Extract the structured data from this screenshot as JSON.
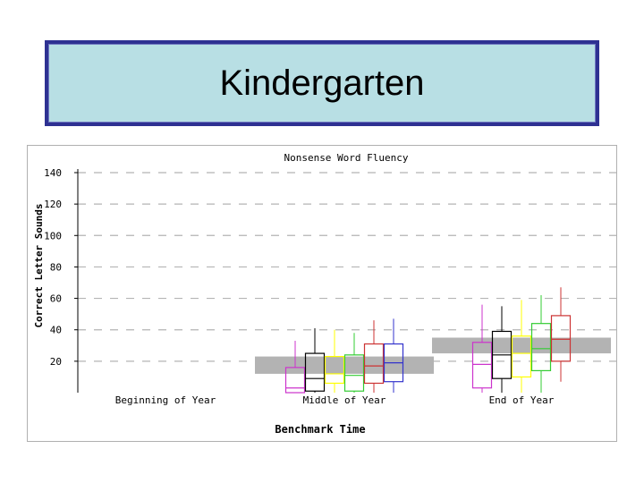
{
  "slide": {
    "title": "Kindergarten"
  },
  "chart_data": {
    "type": "box",
    "title": "Nonsense Word Fluency",
    "xlabel": "Benchmark Time",
    "ylabel": "Correct Letter Sounds",
    "ylim": [
      0,
      140
    ],
    "yticks": [
      20,
      40,
      60,
      80,
      100,
      120,
      140
    ],
    "grid": true,
    "categories": [
      "Beginning of Year",
      "Middle of Year",
      "End of Year"
    ],
    "benchmark_bands": [
      {
        "category": "Middle of Year",
        "low": 12,
        "high": 23
      },
      {
        "category": "End of Year",
        "low": 25,
        "high": 35
      }
    ],
    "series_colors": [
      "#cc33cc",
      "#000000",
      "#ffff00",
      "#33cc33",
      "#cc3333",
      "#3333cc"
    ],
    "boxes": [
      {
        "category": "Middle of Year",
        "color": "#cc33cc",
        "min": 0,
        "q1": 0,
        "median": 3,
        "q3": 16,
        "max": 33
      },
      {
        "category": "Middle of Year",
        "color": "#000000",
        "min": 0,
        "q1": 1,
        "median": 9,
        "q3": 25,
        "max": 41
      },
      {
        "category": "Middle of Year",
        "color": "#ffff00",
        "min": 0,
        "q1": 6,
        "median": 12,
        "q3": 23,
        "max": 40
      },
      {
        "category": "Middle of Year",
        "color": "#33cc33",
        "min": 0,
        "q1": 1,
        "median": 11,
        "q3": 24,
        "max": 38
      },
      {
        "category": "Middle of Year",
        "color": "#cc3333",
        "min": 0,
        "q1": 6,
        "median": 17,
        "q3": 31,
        "max": 46
      },
      {
        "category": "Middle of Year",
        "color": "#3333cc",
        "min": 0,
        "q1": 7,
        "median": 19,
        "q3": 31,
        "max": 47
      },
      {
        "category": "End of Year",
        "color": "#cc33cc",
        "min": 0,
        "q1": 3,
        "median": 18,
        "q3": 32,
        "max": 56
      },
      {
        "category": "End of Year",
        "color": "#000000",
        "min": 0,
        "q1": 9,
        "median": 24,
        "q3": 39,
        "max": 55
      },
      {
        "category": "End of Year",
        "color": "#ffff00",
        "min": 0,
        "q1": 10,
        "median": 25,
        "q3": 36,
        "max": 59
      },
      {
        "category": "End of Year",
        "color": "#33cc33",
        "min": 0,
        "q1": 14,
        "median": 28,
        "q3": 44,
        "max": 62
      },
      {
        "category": "End of Year",
        "color": "#cc3333",
        "min": 7,
        "q1": 20,
        "median": 34,
        "q3": 49,
        "max": 67
      }
    ]
  }
}
